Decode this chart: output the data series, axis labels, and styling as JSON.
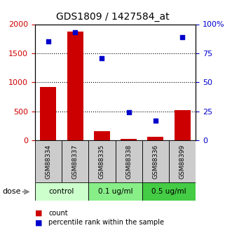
{
  "title": "GDS1809 / 1427584_at",
  "categories": [
    "GSM88334",
    "GSM88337",
    "GSM88335",
    "GSM88338",
    "GSM88336",
    "GSM88399"
  ],
  "bar_values": [
    920,
    1870,
    160,
    30,
    60,
    520
  ],
  "scatter_values": [
    85,
    93,
    71,
    24,
    17,
    89
  ],
  "bar_color": "#cc0000",
  "scatter_color": "#0000cc",
  "ylim_left": [
    0,
    2000
  ],
  "ylim_right": [
    0,
    100
  ],
  "yticks_left": [
    0,
    500,
    1000,
    1500,
    2000
  ],
  "yticks_right": [
    0,
    25,
    50,
    75,
    100
  ],
  "groups": [
    {
      "label": "control",
      "indices": [
        0,
        1
      ],
      "color": "#ccffcc"
    },
    {
      "label": "0.1 ug/ml",
      "indices": [
        2,
        3
      ],
      "color": "#88ee88"
    },
    {
      "label": "0.5 ug/ml",
      "indices": [
        4,
        5
      ],
      "color": "#44cc44"
    }
  ],
  "dose_label": "dose",
  "legend_count": "count",
  "legend_percentile": "percentile rank within the sample",
  "background_color": "#ffffff",
  "plot_bg_color": "#ffffff",
  "tick_label_color_left": "#cc0000",
  "tick_label_color_right": "#0000cc",
  "bar_width": 0.6,
  "sample_cell_color": "#cccccc"
}
